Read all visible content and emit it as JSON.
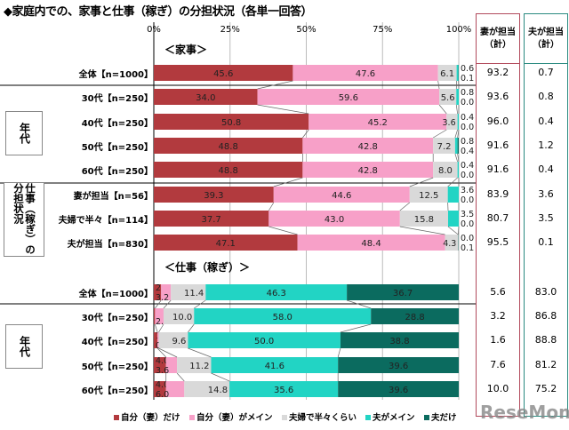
{
  "title": "◆家庭内での、家事と仕事（稼ぎ）の分担状況（各単一回答）",
  "watermark": "ReseMom",
  "colors": {
    "wife_only": "#b23a3e",
    "wife_main": "#f7a0c8",
    "half": "#d9d9d9",
    "husband_main": "#22d4c4",
    "husband_only": "#0b6b5f"
  },
  "right_columns": {
    "wife": "妻が担当",
    "wife_sub": "（計）",
    "husband": "夫が担当",
    "husband_sub": "（計）"
  },
  "groups": {
    "age": "年代",
    "work": "仕事（稼ぎ）の分担状況",
    "age2": "年代"
  },
  "chart_data": [
    {
      "type": "bar",
      "stacked": true,
      "orientation": "horizontal",
      "title": "＜家事＞",
      "xlim": [
        0,
        100
      ],
      "xticks": [
        "0%",
        "25%",
        "50%",
        "75%",
        "100%"
      ],
      "series_names": [
        "自分（妻）だけ",
        "自分（妻）がメイン",
        "夫婦で半々くらい",
        "夫がメイン",
        "夫だけ"
      ],
      "categories": [
        "全体【n=1000】",
        "30代【n=250】",
        "40代【n=250】",
        "50代【n=250】",
        "60代【n=250】",
        "妻が担当【n=56】",
        "夫婦で半々【n=114】",
        "夫が担当【n=830】"
      ],
      "values": [
        [
          45.6,
          47.6,
          6.1,
          0.6,
          0.1
        ],
        [
          34.0,
          59.6,
          5.6,
          0.8,
          0.0
        ],
        [
          50.8,
          45.2,
          3.6,
          0.4,
          0.0
        ],
        [
          48.8,
          42.8,
          7.2,
          0.8,
          0.4
        ],
        [
          48.8,
          42.8,
          8.0,
          0.4,
          0.0
        ],
        [
          39.3,
          44.6,
          12.5,
          3.6,
          0.0
        ],
        [
          37.7,
          43.0,
          15.8,
          3.5,
          0.0
        ],
        [
          47.1,
          48.4,
          4.3,
          0.0,
          0.1
        ]
      ],
      "wife_total": [
        "93.2",
        "93.6",
        "96.0",
        "91.6",
        "91.6",
        "83.9",
        "80.7",
        "95.5"
      ],
      "husband_total": [
        "0.7",
        "0.8",
        "0.4",
        "1.2",
        "0.4",
        "3.6",
        "3.5",
        "0.1"
      ]
    },
    {
      "type": "bar",
      "stacked": true,
      "orientation": "horizontal",
      "title": "＜仕事（稼ぎ）＞",
      "xlim": [
        0,
        100
      ],
      "series_names": [
        "自分（妻）だけ",
        "自分（妻）がメイン",
        "夫婦で半々くらい",
        "夫がメイン",
        "夫だけ"
      ],
      "categories": [
        "全体【n=1000】",
        "30代【n=250】",
        "40代【n=250】",
        "50代【n=250】",
        "60代【n=250】"
      ],
      "values": [
        [
          2.4,
          3.2,
          11.4,
          46.3,
          36.7
        ],
        [
          0.4,
          2.8,
          10.0,
          58.0,
          28.8
        ],
        [
          1.2,
          0.4,
          9.6,
          50.0,
          38.8
        ],
        [
          4.0,
          3.6,
          11.2,
          41.6,
          39.6
        ],
        [
          4.0,
          6.0,
          14.8,
          35.6,
          39.6
        ]
      ],
      "wife_total": [
        "5.6",
        "3.2",
        "1.6",
        "7.6",
        "10.0"
      ],
      "husband_total": [
        "83.0",
        "86.8",
        "88.8",
        "81.2",
        "75.2"
      ]
    }
  ],
  "legend": [
    "自分（妻）だけ",
    "自分（妻）がメイン",
    "夫婦で半々くらい",
    "夫がメイン",
    "夫だけ"
  ]
}
